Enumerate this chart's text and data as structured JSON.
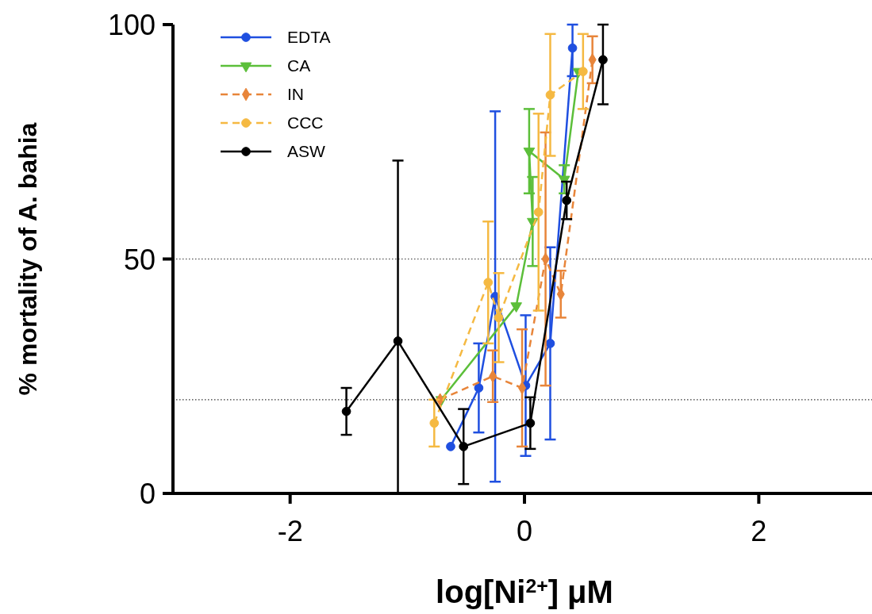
{
  "chart_data": {
    "type": "line",
    "xlabel": "log[Ni$^{2+}$] μM",
    "ylabel": "% mortality of A. bahia",
    "xlim": [
      -3,
      3
    ],
    "xticks": [
      -2,
      0,
      2
    ],
    "ylim": [
      0,
      100
    ],
    "yticks": [
      0,
      50,
      100
    ],
    "legend": "top left",
    "ref_lines": [
      {
        "axis": "y",
        "value": 50,
        "line_style": "dotted",
        "color": "#333333"
      },
      {
        "axis": "y",
        "value": 20,
        "line_style": "dotted",
        "color": "#333333"
      }
    ],
    "series": [
      {
        "name": "EDTA",
        "color": "#1f4fe0",
        "marker": "circle",
        "line_style": "solid",
        "x": [
          -0.63,
          -0.39,
          -0.25,
          0.01,
          0.22,
          0.41
        ],
        "values": [
          10,
          22.5,
          42,
          23,
          32,
          95
        ],
        "errors": [
          null,
          9.5,
          39.5,
          15,
          20.5,
          [
            89,
            100
          ]
        ]
      },
      {
        "name": "CA",
        "color": "#5cbf3a",
        "marker": "triangle",
        "line_style": "solid",
        "x": [
          -0.71,
          -0.07,
          0.07,
          0.04,
          0.34,
          0.46
        ],
        "values": [
          20,
          40,
          58,
          73,
          67,
          90
        ],
        "errors": [
          null,
          null,
          9.5,
          9,
          3,
          null
        ]
      },
      {
        "name": "IN",
        "color": "#e8853a",
        "marker": "diamond",
        "line_style": "dashed",
        "x": [
          -0.72,
          -0.27,
          -0.02,
          0.18,
          0.31,
          0.58
        ],
        "values": [
          20,
          25,
          22.5,
          50,
          42.5,
          92.5
        ],
        "errors": [
          null,
          5.5,
          12.5,
          27,
          5,
          5
        ]
      },
      {
        "name": "CCC",
        "color": "#f5b942",
        "marker": "circle",
        "line_style": "dashed",
        "x": [
          -0.77,
          -0.31,
          -0.22,
          0.12,
          0.22,
          0.5
        ],
        "values": [
          15,
          45,
          37.5,
          60,
          85,
          90
        ],
        "errors": [
          5,
          13,
          9.5,
          21,
          13,
          8
        ]
      },
      {
        "name": "ASW",
        "color": "#000000",
        "marker": "circle",
        "line_style": "solid",
        "x": [
          -1.52,
          -1.08,
          -0.52,
          0.05,
          0.36,
          0.67
        ],
        "values": [
          17.5,
          32.5,
          10,
          15,
          62.5,
          92.5
        ],
        "errors": [
          5,
          [
            0,
            71
          ],
          8,
          5.5,
          4,
          [
            83,
            100
          ]
        ]
      }
    ]
  }
}
